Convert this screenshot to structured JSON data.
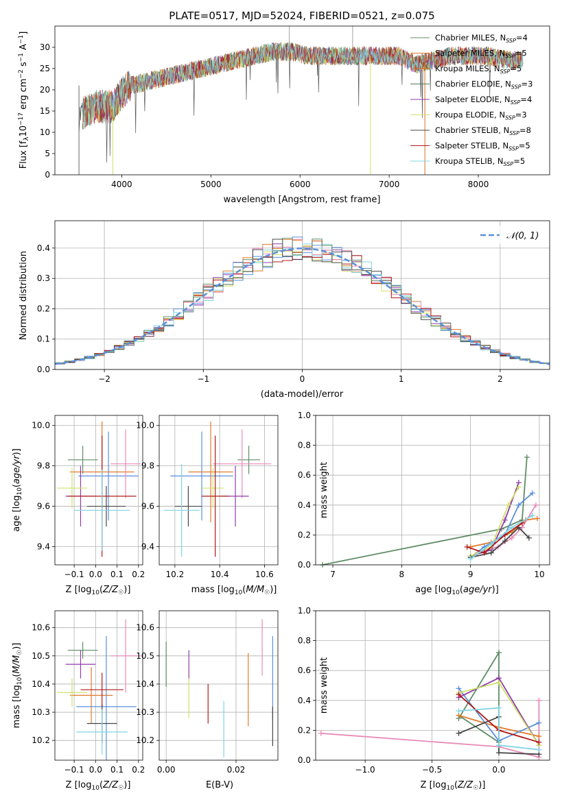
{
  "colors": [
    "#5e8c64",
    "#e07a2a",
    "#d27025",
    "#4c7c52",
    "#8e3aa8",
    "#cfe06a",
    "#444444",
    "#b01818",
    "#80d4e2"
  ],
  "chart_data": [
    {
      "type": "line",
      "title": "PLATE=0517, MJD=52024, FIBERID=0521, z=0.075",
      "xlabel": "wavelength [Angstrom, rest frame]",
      "ylabel": "Flux [f_λ10^-17 erg cm^-2 s^-1 A^-1]",
      "xlim": [
        3250,
        8800
      ],
      "ylim": [
        0,
        35
      ],
      "xticks": [
        "4000",
        "5000",
        "6000",
        "7000",
        "8000"
      ],
      "xtick_vals": [
        4000,
        5000,
        6000,
        7000,
        8000
      ],
      "yticks": [
        "0",
        "5",
        "10",
        "15",
        "20",
        "25",
        "30"
      ],
      "ytick_vals": [
        0,
        5,
        10,
        15,
        20,
        25,
        30
      ],
      "legend": [
        "Chabrier MILES, N_SSP=4",
        "Salpeter MILES, N_SSP=5",
        "Kroupa MILES, N_SSP=5",
        "Chabrier ELODIE, N_SSP=3",
        "Salpeter ELODIE, N_SSP=4",
        "Kroupa ELODIE, N_SSP=3",
        "Chabrier STELIB, N_SSP=8",
        "Salpeter STELIB, N_SSP=5",
        "Kroupa STELIB, N_SSP=5"
      ],
      "legend_colors": [
        "#5e8c64",
        "#e07a2a",
        "#d27025",
        "#4c7c52",
        "#8e3aa8",
        "#cfe06a",
        "#444444",
        "#b01818",
        "#80d4e2"
      ],
      "spectrum_envelope": {
        "x": [
          3520,
          3700,
          3900,
          4000,
          4100,
          4300,
          4500,
          4700,
          4900,
          5100,
          5300,
          5500,
          5700,
          5900,
          6100,
          6300,
          6500,
          6700,
          6900,
          7100,
          7300,
          7500,
          7700,
          7900,
          8100,
          8300,
          8500
        ],
        "y": [
          14,
          16,
          16,
          19,
          21,
          22,
          23,
          24,
          25,
          26,
          27,
          28,
          29,
          29,
          28,
          28,
          28,
          28,
          28,
          28,
          26,
          27,
          28,
          28,
          28,
          27,
          27
        ]
      }
    },
    {
      "type": "histogram",
      "xlabel": "(data-model)/error",
      "ylabel": "Normed distribution",
      "xlim": [
        -2.5,
        2.5
      ],
      "ylim": [
        0,
        0.49
      ],
      "xticks": [
        "−2",
        "−1",
        "0",
        "1",
        "2"
      ],
      "xtick_vals": [
        -2,
        -1,
        0,
        1,
        2
      ],
      "yticks": [
        "0.0",
        "0.1",
        "0.2",
        "0.3",
        "0.4"
      ],
      "ytick_vals": [
        0,
        0.1,
        0.2,
        0.3,
        0.4
      ],
      "legend": [
        "𝒩(0, 1)"
      ],
      "reference_color": "#5b8fd9"
    },
    {
      "type": "scatter",
      "xlabel": "Z [log10(Z/Z☉)]",
      "ylabel": "age  [log10(age/yr)]",
      "xlim": [
        -0.19,
        0.22
      ],
      "ylim": [
        9.31,
        10.05
      ],
      "xticks": [
        "−0.1",
        "0.0",
        "0.1",
        "0.2"
      ],
      "xtick_vals": [
        -0.1,
        0,
        0.1,
        0.2
      ],
      "yticks": [
        "9.4",
        "9.6",
        "9.8",
        "10.0"
      ],
      "ytick_vals": [
        9.4,
        9.6,
        9.8,
        10.0
      ],
      "points": [
        {
          "x": -0.06,
          "y": 9.83,
          "xerr": 0.07,
          "yerr": 0.07,
          "color": "#5e8c64"
        },
        {
          "x": 0.03,
          "y": 9.77,
          "xerr": 0.15,
          "yerr": 0.25,
          "color": "#e07a2a"
        },
        {
          "x": 0.06,
          "y": 9.75,
          "xerr": 0.14,
          "yerr": 0.22,
          "color": "#5b8fd9"
        },
        {
          "x": 0.14,
          "y": 9.81,
          "xerr": 0.07,
          "yerr": 0.17,
          "color": "#e88ab8"
        },
        {
          "x": -0.07,
          "y": 9.65,
          "xerr": 0.07,
          "yerr": 0.15,
          "color": "#8e3aa8"
        },
        {
          "x": -0.11,
          "y": 9.69,
          "xerr": 0.07,
          "yerr": 0.1,
          "color": "#cfe06a"
        },
        {
          "x": 0.05,
          "y": 9.6,
          "xerr": 0.09,
          "yerr": 0.1,
          "color": "#444444"
        },
        {
          "x": 0.03,
          "y": 9.65,
          "xerr": 0.16,
          "yerr": 0.3,
          "color": "#b01818"
        },
        {
          "x": 0.03,
          "y": 9.58,
          "xerr": 0.13,
          "yerr": 0.2,
          "color": "#80d4e2"
        }
      ]
    },
    {
      "type": "scatter",
      "xlabel": "mass [log10(M/M☉)]",
      "ylabel": "",
      "xlim": [
        10.13,
        10.66
      ],
      "ylim": [
        9.31,
        10.05
      ],
      "xticks": [
        "10.2",
        "10.4",
        "10.6"
      ],
      "xtick_vals": [
        10.2,
        10.4,
        10.6
      ],
      "yticks": [
        "9.4",
        "9.6",
        "9.8",
        "10.0"
      ],
      "ytick_vals": [
        9.4,
        9.6,
        9.8,
        10.0
      ],
      "points": [
        {
          "x": 10.53,
          "y": 9.83,
          "xerr": 0.05,
          "yerr": 0.07,
          "color": "#5e8c64"
        },
        {
          "x": 10.36,
          "y": 9.77,
          "xerr": 0.1,
          "yerr": 0.25,
          "color": "#e07a2a"
        },
        {
          "x": 10.32,
          "y": 9.75,
          "xerr": 0.14,
          "yerr": 0.22,
          "color": "#5b8fd9"
        },
        {
          "x": 10.5,
          "y": 9.81,
          "xerr": 0.13,
          "yerr": 0.17,
          "color": "#e88ab8"
        },
        {
          "x": 10.47,
          "y": 9.65,
          "xerr": 0.06,
          "yerr": 0.15,
          "color": "#8e3aa8"
        },
        {
          "x": 10.37,
          "y": 9.69,
          "xerr": 0.05,
          "yerr": 0.1,
          "color": "#cfe06a"
        },
        {
          "x": 10.26,
          "y": 9.6,
          "xerr": 0.06,
          "yerr": 0.1,
          "color": "#444444"
        },
        {
          "x": 10.38,
          "y": 9.65,
          "xerr": 0.06,
          "yerr": 0.3,
          "color": "#b01818"
        },
        {
          "x": 10.23,
          "y": 9.58,
          "xerr": 0.08,
          "yerr": 0.23,
          "color": "#80d4e2"
        }
      ]
    },
    {
      "type": "line",
      "xlabel": "age  [log10(age/yr)]",
      "ylabel": "mass weight",
      "xlim": [
        6.75,
        10.15
      ],
      "ylim": [
        0,
        1
      ],
      "xticks": [
        "7",
        "8",
        "9",
        "10"
      ],
      "xtick_vals": [
        7,
        8,
        9,
        10
      ],
      "yticks": [
        "0.0",
        "0.2",
        "0.4",
        "0.6",
        "0.8",
        "1.0"
      ],
      "ytick_vals": [
        0,
        0.2,
        0.4,
        0.6,
        0.8,
        1.0
      ],
      "series": [
        {
          "color": "#5e8c64",
          "x": [
            6.85,
            9.45,
            9.75,
            9.82
          ],
          "y": [
            0,
            0.24,
            0.3,
            0.72
          ]
        },
        {
          "color": "#e07a2a",
          "x": [
            9.0,
            9.3,
            9.6,
            9.8,
            9.97
          ],
          "y": [
            0.12,
            0.15,
            0.22,
            0.3,
            0.31
          ]
        },
        {
          "color": "#5b8fd9",
          "x": [
            9.0,
            9.2,
            9.5,
            9.7,
            9.9
          ],
          "y": [
            0.05,
            0.12,
            0.2,
            0.4,
            0.48
          ]
        },
        {
          "color": "#e88ab8",
          "x": [
            9.1,
            9.4,
            9.6,
            9.75,
            9.95
          ],
          "y": [
            0.08,
            0.12,
            0.18,
            0.25,
            0.4
          ]
        },
        {
          "color": "#8e3aa8",
          "x": [
            9.0,
            9.3,
            9.5,
            9.7
          ],
          "y": [
            0.06,
            0.1,
            0.3,
            0.55
          ]
        },
        {
          "color": "#cfe06a",
          "x": [
            9.0,
            9.3,
            9.55,
            9.7
          ],
          "y": [
            0.06,
            0.12,
            0.4,
            0.52
          ]
        },
        {
          "color": "#444444",
          "x": [
            9.0,
            9.3,
            9.5,
            9.7,
            9.85
          ],
          "y": [
            0.05,
            0.08,
            0.16,
            0.25,
            0.18
          ]
        },
        {
          "color": "#b01818",
          "x": [
            8.95,
            9.2,
            9.5,
            9.75
          ],
          "y": [
            0.12,
            0.08,
            0.2,
            0.28
          ]
        },
        {
          "color": "#80d4e2",
          "x": [
            9.0,
            9.3,
            9.6,
            9.9
          ],
          "y": [
            0.04,
            0.14,
            0.25,
            0.33
          ]
        }
      ]
    },
    {
      "type": "scatter",
      "xlabel": "Z [log10(Z/Z☉)]",
      "ylabel": "mass [log10(M/M☉)]",
      "xlim": [
        -0.19,
        0.22
      ],
      "ylim": [
        10.13,
        10.66
      ],
      "xticks": [
        "−0.1",
        "0.0",
        "0.1",
        "0.2"
      ],
      "xtick_vals": [
        -0.1,
        0,
        0.1,
        0.2
      ],
      "yticks": [
        "10.2",
        "10.3",
        "10.4",
        "10.5",
        "10.6"
      ],
      "ytick_vals": [
        10.2,
        10.3,
        10.4,
        10.5,
        10.6
      ],
      "points": [
        {
          "x": -0.06,
          "y": 10.52,
          "xerr": 0.07,
          "yerr": 0.03,
          "color": "#5e8c64"
        },
        {
          "x": -0.02,
          "y": 10.36,
          "xerr": 0.1,
          "yerr": 0.1,
          "color": "#e07a2a"
        },
        {
          "x": 0.05,
          "y": 10.32,
          "xerr": 0.14,
          "yerr": 0.25,
          "color": "#5b8fd9"
        },
        {
          "x": 0.14,
          "y": 10.5,
          "xerr": 0.07,
          "yerr": 0.13,
          "color": "#e88ab8"
        },
        {
          "x": -0.07,
          "y": 10.47,
          "xerr": 0.07,
          "yerr": 0.05,
          "color": "#8e3aa8"
        },
        {
          "x": -0.11,
          "y": 10.37,
          "xerr": 0.07,
          "yerr": 0.05,
          "color": "#cfe06a"
        },
        {
          "x": 0.03,
          "y": 10.26,
          "xerr": 0.07,
          "yerr": 0.07,
          "color": "#444444"
        },
        {
          "x": 0.03,
          "y": 10.38,
          "xerr": 0.1,
          "yerr": 0.06,
          "color": "#b01818"
        },
        {
          "x": 0.03,
          "y": 10.23,
          "xerr": 0.12,
          "yerr": 0.08,
          "color": "#80d4e2"
        }
      ]
    },
    {
      "type": "scatter",
      "xlabel": "E(B-V)",
      "ylabel": "",
      "xlim": [
        -0.002,
        0.032
      ],
      "ylim": [
        10.13,
        10.66
      ],
      "xticks": [
        "0.00",
        "0.02"
      ],
      "xtick_vals": [
        0,
        0.02
      ],
      "yticks": [
        "10.2",
        "10.3",
        "10.4",
        "10.5",
        "10.6"
      ],
      "ytick_vals": [
        10.2,
        10.3,
        10.4,
        10.5,
        10.6
      ],
      "points": [
        {
          "x": 0.0,
          "y": 10.47,
          "yerr": 0.08,
          "color": "#5e8c64"
        },
        {
          "x": 0.0065,
          "y": 10.35,
          "yerr": 0.07,
          "color": "#cfe06a"
        },
        {
          "x": 0.0065,
          "y": 10.47,
          "yerr": 0.05,
          "color": "#8e3aa8"
        },
        {
          "x": 0.012,
          "y": 10.33,
          "yerr": 0.07,
          "color": "#b01818"
        },
        {
          "x": 0.0165,
          "y": 10.24,
          "yerr": 0.1,
          "color": "#80d4e2"
        },
        {
          "x": 0.0235,
          "y": 10.38,
          "yerr": 0.13,
          "color": "#e07a2a"
        },
        {
          "x": 0.0275,
          "y": 10.53,
          "yerr": 0.1,
          "color": "#e88ab8"
        },
        {
          "x": 0.0305,
          "y": 10.42,
          "yerr": 0.15,
          "color": "#5b8fd9"
        },
        {
          "x": 0.0305,
          "y": 10.25,
          "yerr": 0.07,
          "color": "#444444"
        }
      ]
    },
    {
      "type": "line",
      "xlabel": "Z [log10(Z/Z☉)]",
      "ylabel": "mass weight",
      "xlim": [
        -1.37,
        0.38
      ],
      "ylim": [
        0,
        1
      ],
      "xticks": [
        "−1.0",
        "−0.5",
        "0.0"
      ],
      "xtick_vals": [
        -1,
        -0.5,
        0
      ],
      "yticks": [
        "0.0",
        "0.2",
        "0.4",
        "0.6",
        "0.8",
        "1.0"
      ],
      "ytick_vals": [
        0,
        0.2,
        0.4,
        0.6,
        0.8,
        1.0
      ],
      "series": [
        {
          "color": "#e88ab8",
          "x": [
            -1.33,
            0.0,
            0.3,
            0.3
          ],
          "y": [
            0.18,
            0.09,
            0.02,
            0.4
          ]
        },
        {
          "color": "#5e8c64",
          "x": [
            -0.3,
            0.0,
            0.0,
            -0.3
          ],
          "y": [
            0.28,
            0.72,
            0.12,
            0.3
          ]
        },
        {
          "color": "#e07a2a",
          "x": [
            -0.3,
            0.0,
            0.3
          ],
          "y": [
            0.3,
            0.22,
            0.16
          ]
        },
        {
          "color": "#5b8fd9",
          "x": [
            -0.3,
            0.0,
            0.3
          ],
          "y": [
            0.48,
            0.13,
            0.25
          ]
        },
        {
          "color": "#8e3aa8",
          "x": [
            -0.3,
            0.0,
            0.3
          ],
          "y": [
            0.42,
            0.55,
            0.1
          ]
        },
        {
          "color": "#cfe06a",
          "x": [
            -0.3,
            0.0,
            0.3
          ],
          "y": [
            0.45,
            0.52,
            0.1
          ]
        },
        {
          "color": "#444444",
          "x": [
            -0.3,
            0.0,
            0.0,
            0.3
          ],
          "y": [
            0.18,
            0.29,
            0.05,
            0.04
          ]
        },
        {
          "color": "#b01818",
          "x": [
            -0.3,
            0.0,
            0.3
          ],
          "y": [
            0.44,
            0.2,
            0.12
          ]
        },
        {
          "color": "#80d4e2",
          "x": [
            -0.3,
            0.0,
            0.0,
            0.3
          ],
          "y": [
            0.33,
            0.35,
            0.1,
            0.07
          ]
        }
      ]
    }
  ]
}
